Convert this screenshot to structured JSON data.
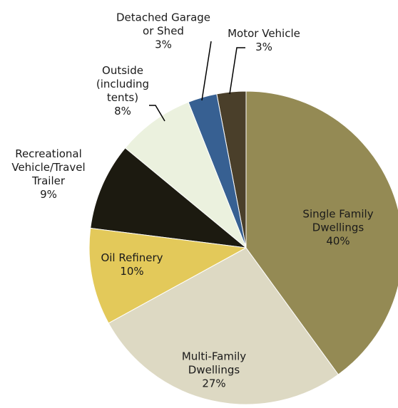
{
  "chart_data": {
    "type": "pie",
    "categories": [
      "Single Family Dwellings",
      "Multi-Family Dwellings",
      "Oil Refinery",
      "Recreational Vehicle/Travel Trailer",
      "Outside (including tents)",
      "Detached Garage or Shed",
      "Motor Vehicle"
    ],
    "values": [
      40,
      27,
      10,
      9,
      8,
      3,
      3
    ],
    "value_labels": [
      "40%",
      "27%",
      "10%",
      "9%",
      "8%",
      "3%",
      "3%"
    ],
    "colors": [
      "#948a54",
      "#ddd9c3",
      "#e3c95a",
      "#1c1a10",
      "#ebf1de",
      "#376092",
      "#4a3f2a"
    ]
  }
}
